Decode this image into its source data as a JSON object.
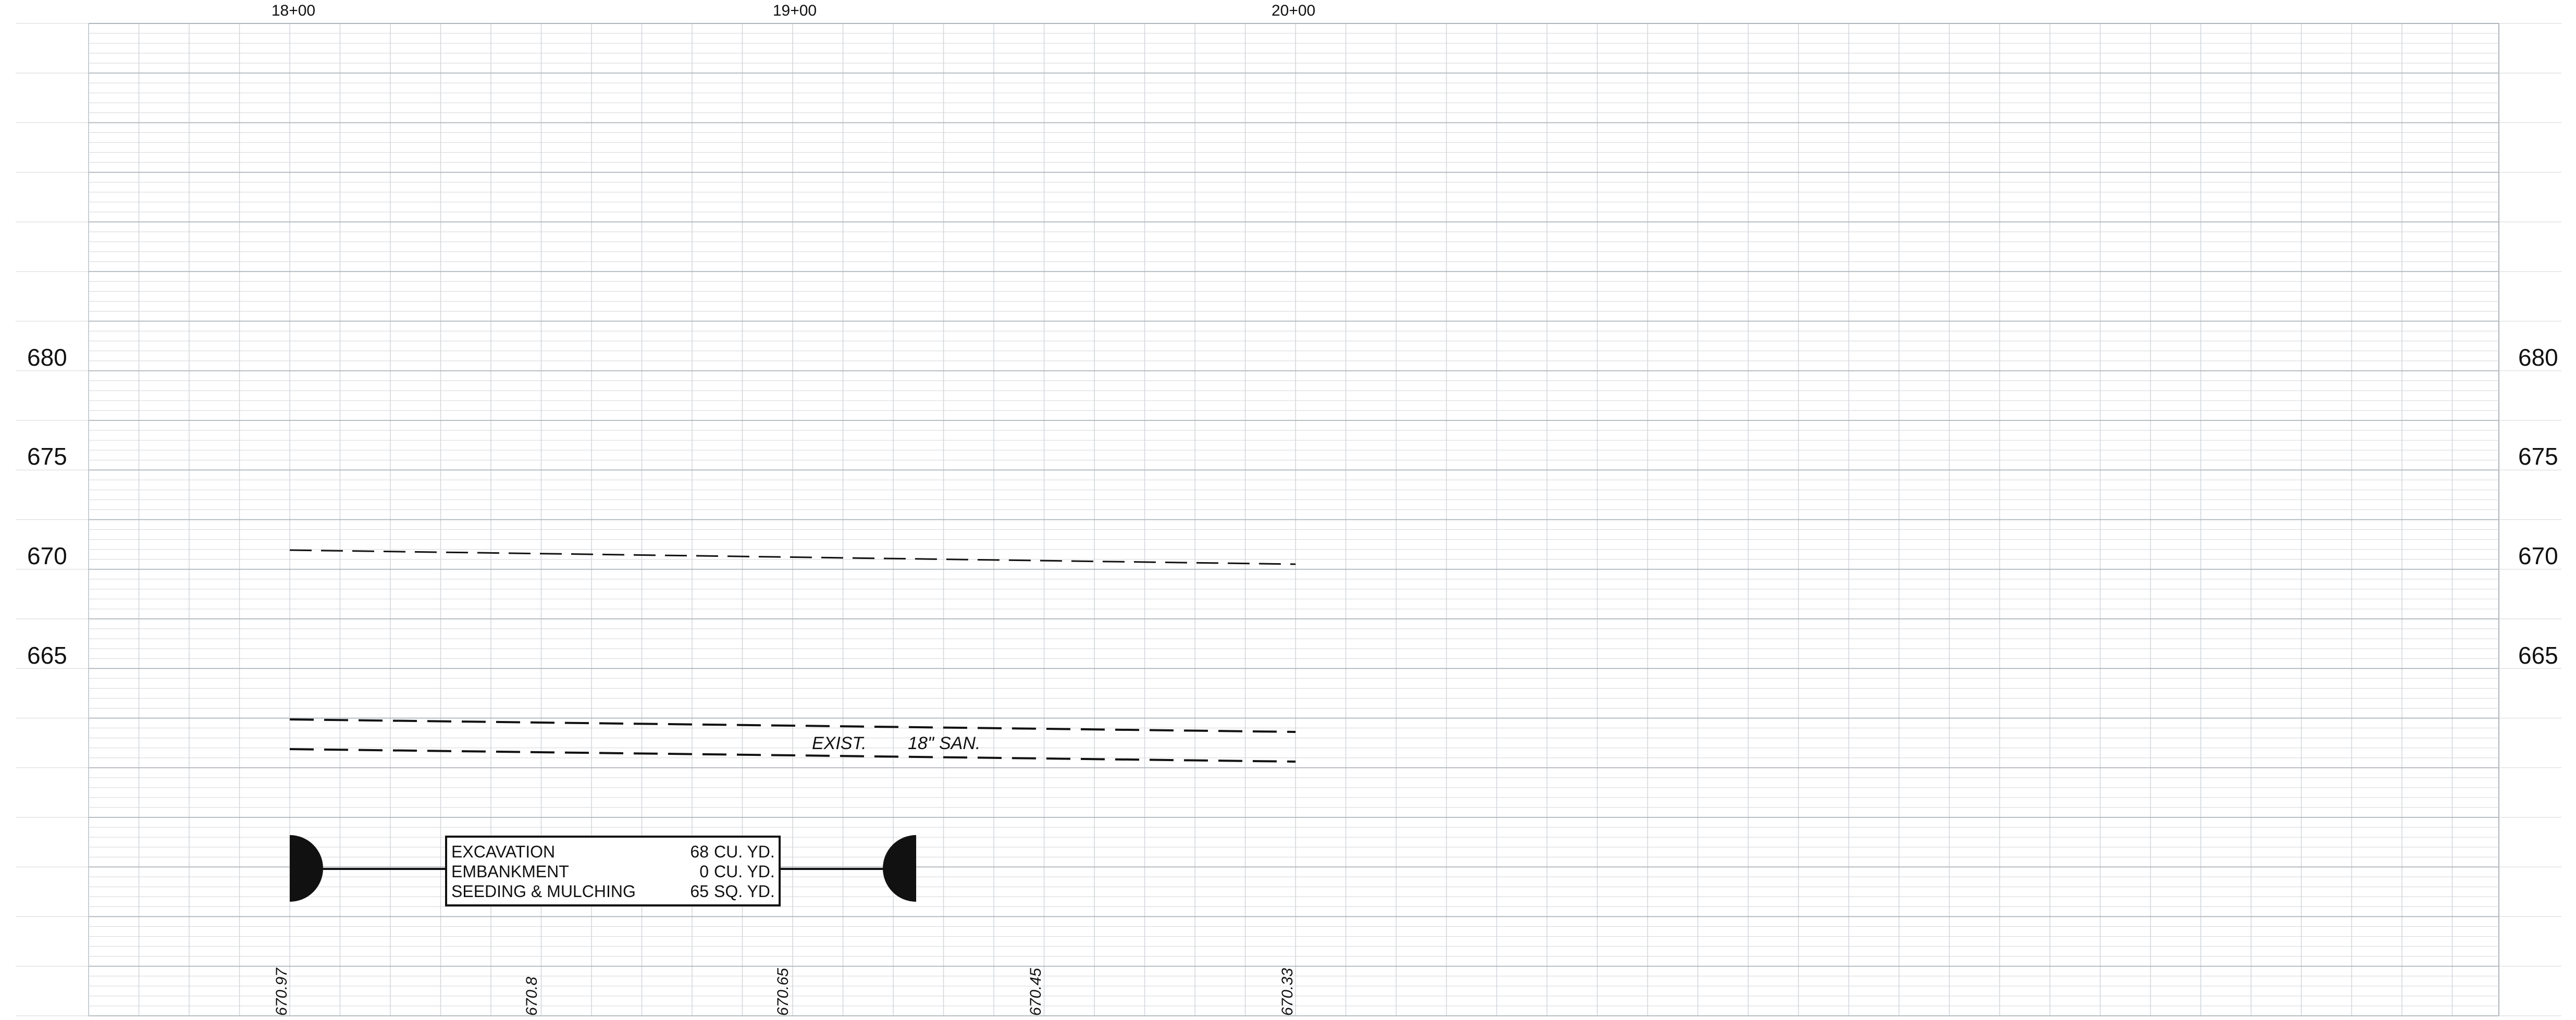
{
  "stations": [
    "18+00",
    "19+00",
    "20+00"
  ],
  "elevations_left": [
    "680",
    "675",
    "670",
    "665"
  ],
  "elevations_right": [
    "680",
    "675",
    "670",
    "665"
  ],
  "grade_elevations": [
    "670.97",
    "670.8",
    "670.65",
    "670.45",
    "670.33"
  ],
  "pipe_note": [
    "EXIST.",
    "18\"",
    "SAN."
  ],
  "quantities": {
    "rows": [
      {
        "item": "EXCAVATION",
        "amount": "68",
        "unit": "CU. YD."
      },
      {
        "item": "EMBANKMENT",
        "amount": "0",
        "unit": "CU. YD."
      },
      {
        "item": "SEEDING & MULCHING",
        "amount": "65",
        "unit": "SQ. YD."
      }
    ]
  },
  "colors": {
    "grid_minor": "#d2d6da",
    "grid_major": "#aeb4ba",
    "ink": "#111111"
  }
}
